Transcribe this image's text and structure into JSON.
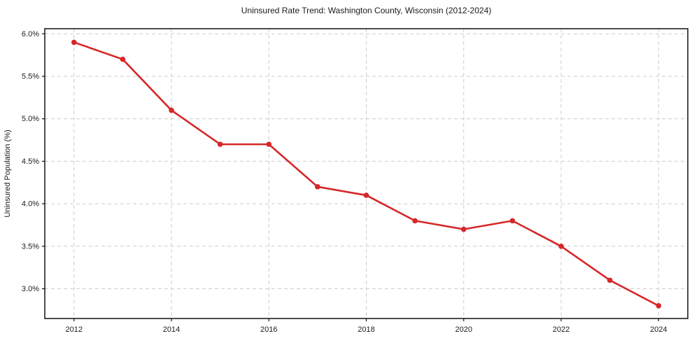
{
  "chart_data": {
    "type": "line",
    "title": "Uninsured Rate Trend: Washington County, Wisconsin (2012-2024)",
    "xlabel": "",
    "ylabel": "Uninsured Population (%)",
    "x": [
      2012,
      2013,
      2014,
      2015,
      2016,
      2017,
      2018,
      2019,
      2020,
      2021,
      2022,
      2023,
      2024
    ],
    "values": [
      5.9,
      5.7,
      5.1,
      4.7,
      4.7,
      4.2,
      4.1,
      3.8,
      3.7,
      3.8,
      3.5,
      3.1,
      2.8
    ],
    "xlim": [
      2011.4,
      2024.6
    ],
    "ylim": [
      2.65,
      6.06
    ],
    "xticks": [
      2012,
      2014,
      2016,
      2018,
      2020,
      2022,
      2024
    ],
    "xtick_labels": [
      "2012",
      "2014",
      "2016",
      "2018",
      "2020",
      "2022",
      "2024"
    ],
    "yticks": [
      3.0,
      3.5,
      4.0,
      4.5,
      5.0,
      5.5,
      6.0
    ],
    "ytick_labels": [
      "3.0%",
      "3.5%",
      "4.0%",
      "4.5%",
      "5.0%",
      "5.5%",
      "6.0%"
    ],
    "grid": true,
    "legend": false,
    "colors": {
      "line": "#d62728",
      "marker": "#d62728",
      "grid": "#cccccc",
      "spine": "#111111",
      "tick": "#111111",
      "text": "#1a1a1a",
      "background": "#ffffff"
    }
  }
}
